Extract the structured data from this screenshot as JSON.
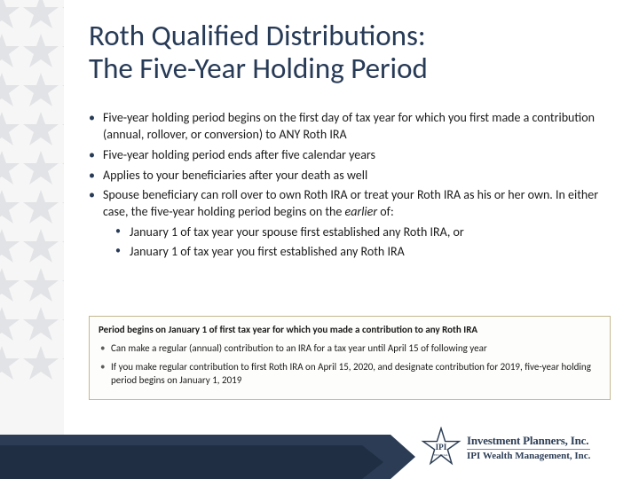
{
  "title": "Roth Qualified Distributions:\nThe Five-Year Holding Period",
  "bullets": [
    "Five-year holding period begins on the first day of tax year for which you first made a contribution (annual, rollover, or conversion) to ANY Roth IRA",
    "Five-year holding period ends after five calendar years",
    "Applies to your beneficiaries after your death as well",
    "Spouse beneficiary can roll over to own Roth IRA or treat your Roth IRA as his or her own. In either case, the five-year holding period begins on the earlier of:"
  ],
  "sub_bullets": [
    "January 1 of tax year your spouse first established any Roth IRA, or",
    "January 1 of tax year you first established any Roth IRA"
  ],
  "callout": {
    "head": "Period begins on January 1 of first tax year for which you made a contribution to any Roth IRA",
    "items": [
      "Can make a regular (annual) contribution to an IRA for a tax year until April 15 of following year",
      "If you make regular contribution to first Roth IRA on April 15, 2020, and designate contribution for 2019, five-year holding period begins on January 1, 2019"
    ]
  },
  "colors": {
    "title": "#273a56",
    "sidebar_bg": "#f6f6f6",
    "star_fill": "#d2d5da",
    "footer_dark": "#2b3c54",
    "callout_border": "#c5b78f"
  },
  "logo": {
    "line1": "Investment Planners, Inc.",
    "line2": "IPI Wealth Management, Inc.",
    "badge": "IPI"
  }
}
